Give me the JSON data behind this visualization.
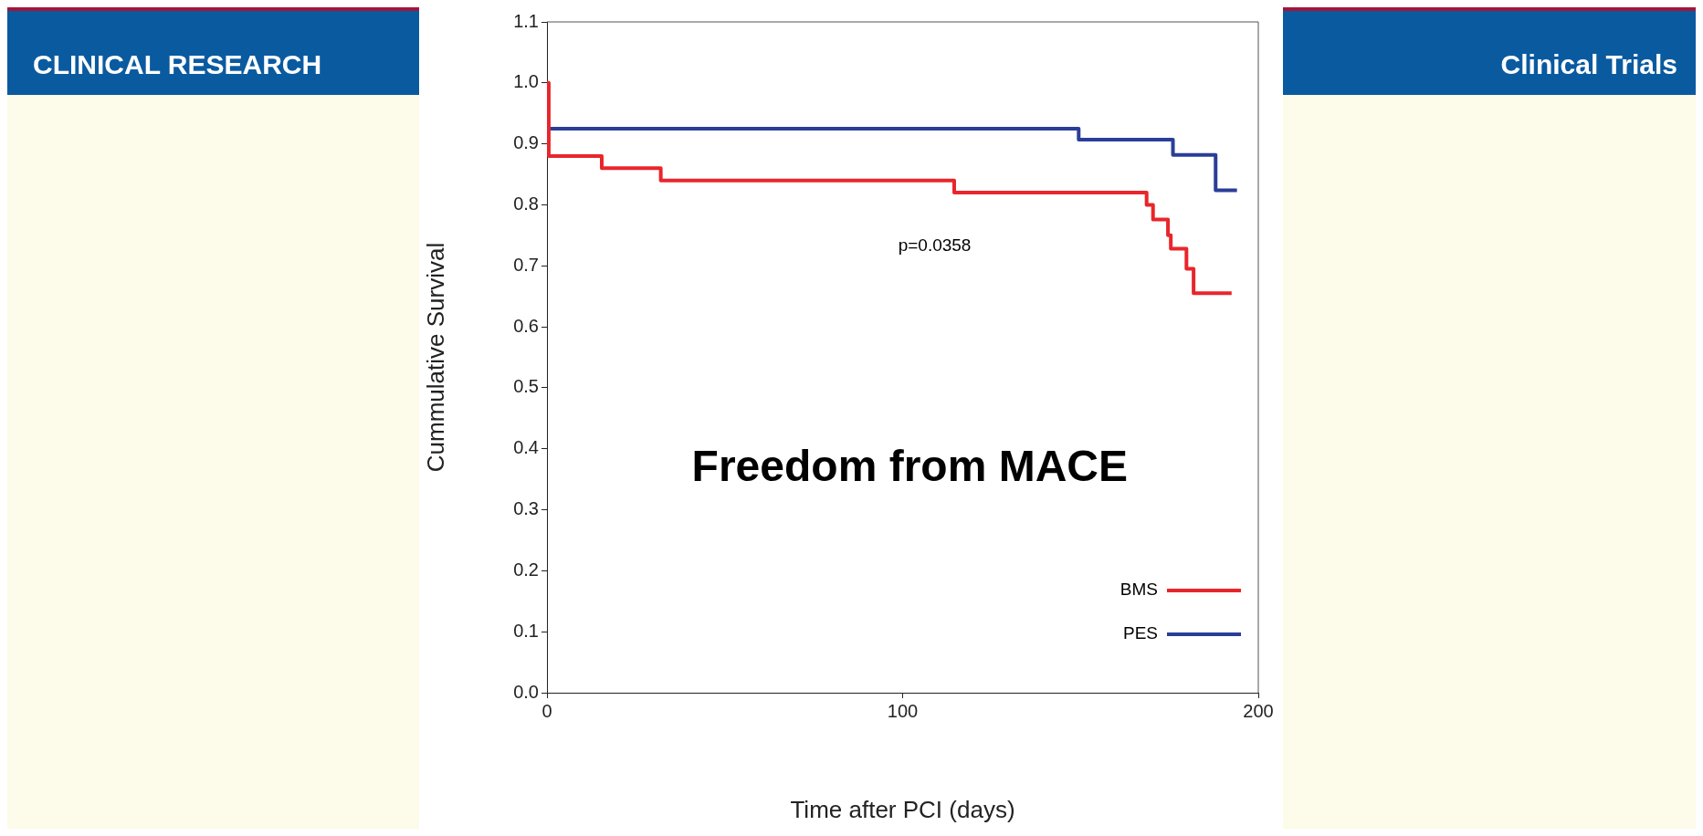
{
  "chart_data": {
    "type": "step",
    "title": "Freedom from MACE",
    "xlabel": "Time after PCI (days)",
    "ylabel": "Cummulative Survival",
    "annotations": [
      "p=0.0358",
      "CLINICAL RESEARCH",
      "Clinical Trials"
    ],
    "series": [
      {
        "name": "BMS",
        "color": "#e8262b",
        "x": [
          0,
          0.5,
          15.4,
          32,
          114.5,
          168.6,
          170.4,
          174.6,
          175.4,
          179.8,
          181.8,
          192.5
        ],
        "values": [
          1.0,
          0.88,
          0.86,
          0.84,
          0.82,
          0.8,
          0.776,
          0.75,
          0.728,
          0.695,
          0.655,
          0.655
        ]
      },
      {
        "name": "PES",
        "color": "#2a3e98",
        "x": [
          0.5,
          149.5,
          176,
          188,
          194
        ],
        "values": [
          0.925,
          0.907,
          0.882,
          0.824,
          0.824
        ]
      }
    ],
    "xlim": [
      0,
      200
    ],
    "xticks": [
      0,
      100,
      200
    ],
    "ylim": [
      0,
      1.1
    ],
    "yticks": [
      {
        "value": 0,
        "label": "0.0"
      },
      {
        "value": 0.1,
        "label": "0.1"
      },
      {
        "value": 0.2,
        "label": "0.2"
      },
      {
        "value": 0.3,
        "label": "0.3"
      },
      {
        "value": 0.4,
        "label": "0.4"
      },
      {
        "value": 0.5,
        "label": "0.5"
      },
      {
        "value": 0.6,
        "label": "0.6"
      },
      {
        "value": 0.7,
        "label": "0.7"
      },
      {
        "value": 0.8,
        "label": "0.8"
      },
      {
        "value": 0.9,
        "label": "0.9"
      },
      {
        "value": 1.0,
        "label": "1.0"
      },
      {
        "value": 1.1,
        "label": "1.1"
      }
    ],
    "grid": false,
    "legend": "bottom right",
    "marker": "none",
    "line_style": "solid"
  }
}
